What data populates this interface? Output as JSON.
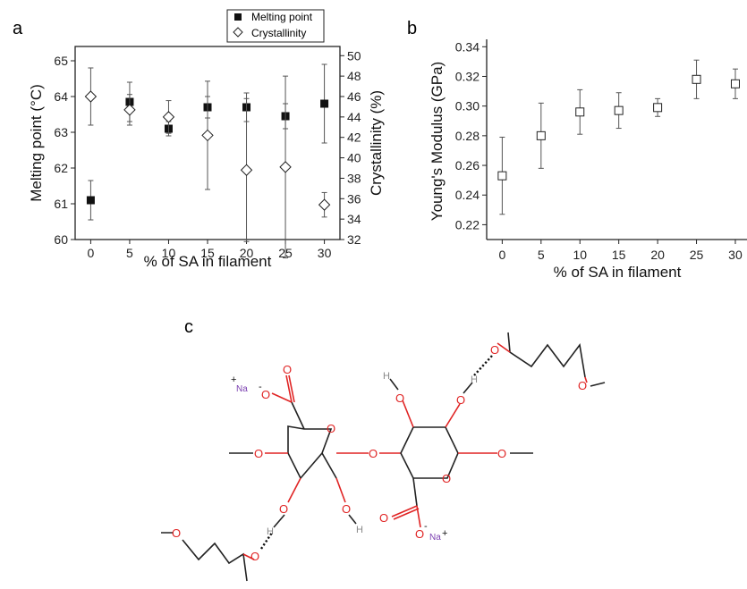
{
  "panel_letters": {
    "a": "a",
    "b": "b",
    "c": "c"
  },
  "chart_data": [
    {
      "type": "scatter",
      "panel": "a",
      "xlabel": "% of SA in filament",
      "ylabel": "Melting point (°C)",
      "ylabel_right": "Crystallinity (%)",
      "x_ticks": [
        "0",
        "5",
        "10",
        "15",
        "20",
        "25",
        "30"
      ],
      "y_ticks": [
        "60",
        "61",
        "62",
        "63",
        "64",
        "65"
      ],
      "y2_ticks": [
        "32",
        "34",
        "36",
        "38",
        "40",
        "42",
        "44",
        "46",
        "48",
        "50"
      ],
      "xlim": [
        -2,
        32
      ],
      "ylim": [
        60,
        65.4
      ],
      "y2lim": [
        32,
        50.9
      ],
      "legend_position": "top-center",
      "series": [
        {
          "name": "Melting point",
          "axis": "left",
          "marker": "filled-square",
          "x": [
            0,
            5,
            10,
            15,
            20,
            25,
            30
          ],
          "y": [
            61.1,
            63.85,
            63.1,
            63.7,
            63.7,
            63.45,
            63.8
          ],
          "err": [
            0.55,
            0.55,
            0.2,
            0.3,
            0.4,
            0.35,
            1.1
          ]
        },
        {
          "name": "Crystallinity",
          "axis": "right",
          "marker": "open-diamond",
          "x": [
            0,
            5,
            10,
            15,
            20,
            25,
            30
          ],
          "y": [
            46.0,
            44.7,
            44.0,
            42.2,
            38.8,
            39.1,
            35.4
          ],
          "err": [
            2.8,
            1.5,
            1.6,
            5.3,
            7.0,
            8.9,
            1.2
          ]
        }
      ]
    },
    {
      "type": "scatter",
      "panel": "b",
      "xlabel": "% of SA in filament",
      "ylabel": "Young's Modulus (GPa)",
      "x_ticks": [
        "0",
        "5",
        "10",
        "15",
        "20",
        "25",
        "30"
      ],
      "y_ticks": [
        "0.22",
        "0.24",
        "0.26",
        "0.28",
        "0.30",
        "0.32",
        "0.34"
      ],
      "xlim": [
        -2,
        31.5
      ],
      "ylim": [
        0.21,
        0.345
      ],
      "series": [
        {
          "name": "",
          "marker": "open-square",
          "x": [
            0,
            5,
            10,
            15,
            20,
            25,
            30
          ],
          "y": [
            0.253,
            0.28,
            0.296,
            0.297,
            0.299,
            0.318,
            0.315
          ],
          "err": [
            0.026,
            0.022,
            0.015,
            0.012,
            0.006,
            0.013,
            0.01
          ]
        }
      ]
    }
  ],
  "structure": {
    "oxygen": "O",
    "hydrogen": "H",
    "sodium": "Na",
    "plus": "+",
    "minus": "-"
  }
}
